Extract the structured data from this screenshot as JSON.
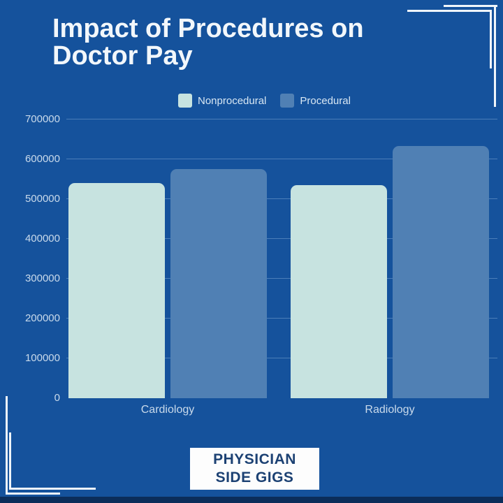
{
  "page": {
    "background_color": "#15529c",
    "accent_line_color": "#eff5fa",
    "bottom_strip_color": "#0b2d5a",
    "text_color": "#f2f7fb",
    "axis_text_color": "#c9daeb"
  },
  "title": "Impact of Procedures on Doctor Pay",
  "legend": {
    "items": [
      {
        "label": "Nonprocedural",
        "color": "#c7e3e0"
      },
      {
        "label": "Procedural",
        "color": "#5080b4"
      }
    ]
  },
  "chart_data": {
    "type": "bar",
    "title": "Impact of Procedures on Doctor Pay",
    "categories": [
      "Cardiology",
      "Radiology"
    ],
    "series": [
      {
        "name": "Nonprocedural",
        "color": "#c7e3e0",
        "values": [
          540000,
          535000
        ]
      },
      {
        "name": "Procedural",
        "color": "#5080b4",
        "values": [
          575000,
          633000
        ]
      }
    ],
    "xlabel": "",
    "ylabel": "",
    "ylim": [
      0,
      700000
    ],
    "ytick_step": 100000,
    "ytick_labels": [
      "0",
      "100000",
      "200000",
      "300000",
      "400000",
      "500000",
      "600000",
      "700000"
    ],
    "grid": true,
    "legend_position": "top"
  },
  "badge": {
    "line1": "PHYSICIAN",
    "line2": "SIDE GIGS"
  }
}
